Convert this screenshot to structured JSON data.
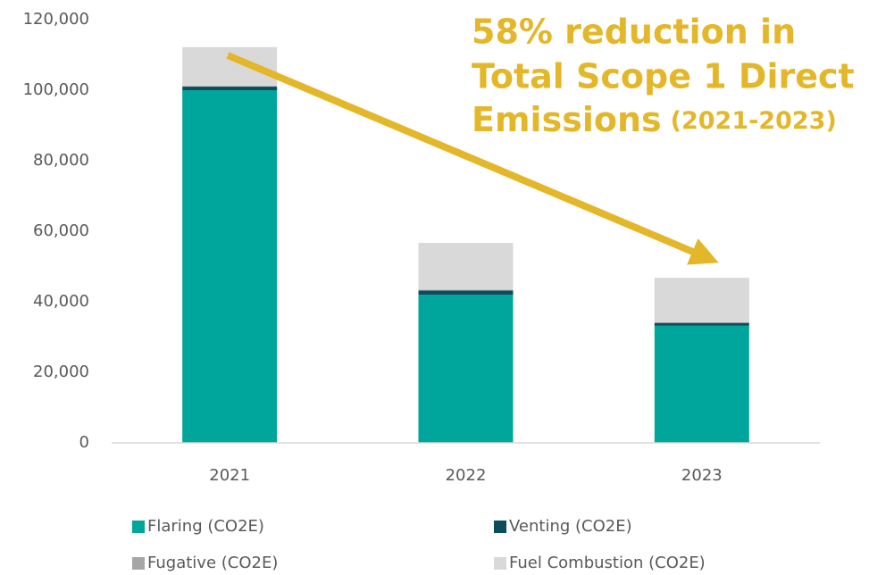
{
  "chart_data": {
    "type": "stacked-bar",
    "categories": [
      "2021",
      "2022",
      "2023"
    ],
    "series": [
      {
        "name": "Flaring (CO2E)",
        "color": "#00A59B",
        "values": [
          100000,
          42000,
          33200
        ]
      },
      {
        "name": "Venting (CO2E)",
        "color": "#0E4C5C",
        "values": [
          1000,
          1200,
          800
        ]
      },
      {
        "name": "Fugative (CO2E)",
        "color": "#A6A6A6",
        "values": [
          200,
          200,
          200
        ]
      },
      {
        "name": "Fuel Combustion (CO2E)",
        "color": "#D9D9D9",
        "values": [
          11000,
          13300,
          12600
        ]
      }
    ],
    "ylim": [
      0,
      120000
    ],
    "yticks": [
      0,
      {
        "value": 20000,
        "label": "20,000"
      },
      {
        "value": 40000,
        "label": "40,000"
      },
      {
        "value": 60000,
        "label": "60,000"
      },
      {
        "value": 80000,
        "label": "80,000"
      },
      {
        "value": 100000,
        "label": "100,000"
      },
      {
        "value": 120000,
        "label": "120,000"
      }
    ],
    "annotation": [
      "58% reduction in",
      "Total Scope 1 Direct",
      "Emissions",
      "(2021-2023)"
    ],
    "grid": false
  }
}
